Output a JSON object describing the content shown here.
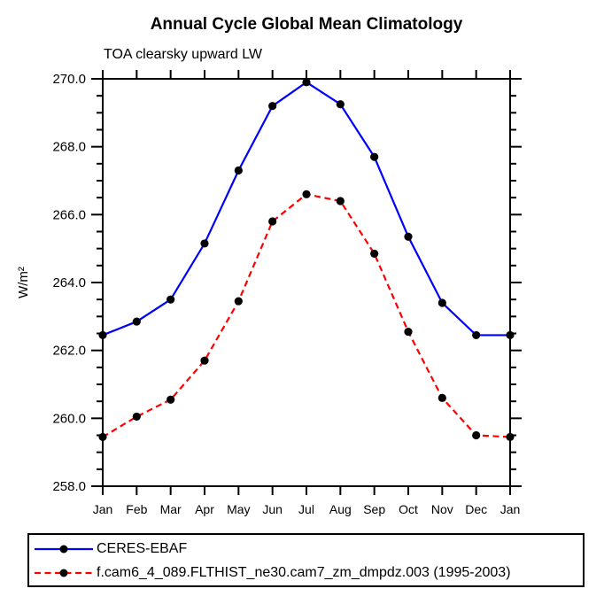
{
  "title": "Annual Cycle Global Mean Climatology",
  "subtitle": "TOA clearsky upward LW",
  "chart_data": {
    "type": "line",
    "categories": [
      "Jan",
      "Feb",
      "Mar",
      "Apr",
      "May",
      "Jun",
      "Jul",
      "Aug",
      "Sep",
      "Oct",
      "Nov",
      "Dec",
      "Jan"
    ],
    "series": [
      {
        "name": "CERES-EBAF",
        "color": "#0000ff",
        "line_style": "solid",
        "marker": "black-dot",
        "values": [
          262.45,
          262.85,
          263.5,
          265.15,
          267.3,
          269.2,
          269.9,
          269.25,
          267.7,
          265.35,
          263.4,
          262.45,
          262.45
        ]
      },
      {
        "name": "f.cam6_4_089.FLTHIST_ne30.cam7_zm_dmpdz.003 (1995-2003)",
        "color": "#ff0000",
        "line_style": "dashed",
        "marker": "black-dot",
        "values": [
          259.45,
          260.05,
          260.55,
          261.7,
          263.45,
          265.8,
          266.6,
          266.4,
          264.85,
          262.55,
          260.6,
          259.5,
          259.45
        ]
      }
    ],
    "xlabel": "",
    "ylabel": "W/m²",
    "ylim": [
      258.0,
      270.0
    ],
    "ytick_major_step": 2.0,
    "ytick_minor_step": 0.5,
    "ytick_label_format": "one-decimal",
    "grid": false,
    "legend_position": "bottom-left-box",
    "marker_color": "#000000",
    "axis_color": "#000000",
    "background_color": "#ffffff"
  }
}
